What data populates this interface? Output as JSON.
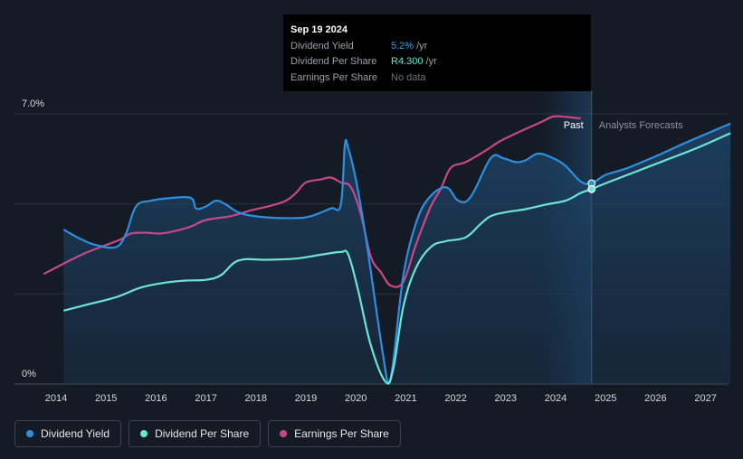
{
  "tooltip": {
    "date": "Sep 19 2024",
    "rows": [
      {
        "label": "Dividend Yield",
        "value": "5.2%",
        "unit": "/yr"
      },
      {
        "label": "Dividend Per Share",
        "value": "R4.300",
        "unit": "/yr"
      },
      {
        "label": "Earnings Per Share",
        "value": "No data",
        "unit": ""
      }
    ]
  },
  "legend": [
    {
      "label": "Dividend Yield",
      "color": "#2e8fe0"
    },
    {
      "label": "Dividend Per Share",
      "color": "#6be6d2"
    },
    {
      "label": "Earnings Per Share",
      "color": "#c7488a"
    }
  ],
  "chart_data": {
    "type": "line",
    "y_axis_labels": [
      "7.0%",
      "0%"
    ],
    "ylim": [
      0,
      7.0
    ],
    "xlim": [
      2013.7,
      2027.5
    ],
    "x_ticks": [
      "2014",
      "2015",
      "2016",
      "2017",
      "2018",
      "2019",
      "2020",
      "2021",
      "2022",
      "2023",
      "2024",
      "2025",
      "2026",
      "2027"
    ],
    "past_label": "Past",
    "forecast_label": "Analysts Forecasts",
    "forecast_start": 2024.72,
    "past_shade_start": 2023.7,
    "grid": true,
    "series": [
      {
        "name": "Dividend Yield",
        "color": "#2e8fe0",
        "fill": true,
        "points": [
          [
            2014.15,
            4.0
          ],
          [
            2014.5,
            3.75
          ],
          [
            2014.8,
            3.6
          ],
          [
            2015.2,
            3.55
          ],
          [
            2015.4,
            3.9
          ],
          [
            2015.6,
            4.6
          ],
          [
            2015.9,
            4.75
          ],
          [
            2016.3,
            4.82
          ],
          [
            2016.7,
            4.82
          ],
          [
            2016.8,
            4.55
          ],
          [
            2017.0,
            4.6
          ],
          [
            2017.2,
            4.75
          ],
          [
            2017.4,
            4.65
          ],
          [
            2017.7,
            4.42
          ],
          [
            2018.2,
            4.32
          ],
          [
            2018.8,
            4.3
          ],
          [
            2019.1,
            4.35
          ],
          [
            2019.5,
            4.55
          ],
          [
            2019.7,
            4.65
          ],
          [
            2019.78,
            6.2
          ],
          [
            2019.85,
            6.1
          ],
          [
            2020.0,
            5.3
          ],
          [
            2020.2,
            3.8
          ],
          [
            2020.4,
            2.0
          ],
          [
            2020.55,
            0.7
          ],
          [
            2020.65,
            0.05
          ],
          [
            2020.75,
            0.6
          ],
          [
            2020.95,
            2.8
          ],
          [
            2021.2,
            4.15
          ],
          [
            2021.45,
            4.8
          ],
          [
            2021.8,
            5.1
          ],
          [
            2022.05,
            4.75
          ],
          [
            2022.3,
            4.85
          ],
          [
            2022.7,
            5.85
          ],
          [
            2022.95,
            5.85
          ],
          [
            2023.2,
            5.75
          ],
          [
            2023.4,
            5.8
          ],
          [
            2023.65,
            5.97
          ],
          [
            2023.95,
            5.85
          ],
          [
            2024.2,
            5.65
          ],
          [
            2024.5,
            5.25
          ],
          [
            2024.72,
            5.2
          ],
          [
            2025.0,
            5.42
          ],
          [
            2025.4,
            5.58
          ],
          [
            2026.0,
            5.9
          ],
          [
            2026.6,
            6.25
          ],
          [
            2027.5,
            6.75
          ]
        ]
      },
      {
        "name": "Dividend Per Share",
        "color": "#6be6d2",
        "fill": false,
        "points": [
          [
            2014.15,
            1.9
          ],
          [
            2014.6,
            2.05
          ],
          [
            2015.2,
            2.25
          ],
          [
            2015.7,
            2.5
          ],
          [
            2016.2,
            2.63
          ],
          [
            2016.6,
            2.68
          ],
          [
            2017.0,
            2.7
          ],
          [
            2017.3,
            2.82
          ],
          [
            2017.65,
            3.2
          ],
          [
            2018.2,
            3.22
          ],
          [
            2018.8,
            3.25
          ],
          [
            2019.3,
            3.35
          ],
          [
            2019.7,
            3.42
          ],
          [
            2019.85,
            3.35
          ],
          [
            2020.05,
            2.4
          ],
          [
            2020.3,
            1.0
          ],
          [
            2020.6,
            0.05
          ],
          [
            2020.75,
            0.4
          ],
          [
            2020.95,
            2.0
          ],
          [
            2021.2,
            3.0
          ],
          [
            2021.5,
            3.55
          ],
          [
            2021.8,
            3.7
          ],
          [
            2022.2,
            3.8
          ],
          [
            2022.5,
            4.15
          ],
          [
            2022.7,
            4.35
          ],
          [
            2023.0,
            4.45
          ],
          [
            2023.4,
            4.53
          ],
          [
            2023.8,
            4.65
          ],
          [
            2024.2,
            4.75
          ],
          [
            2024.5,
            4.95
          ],
          [
            2024.72,
            5.05
          ],
          [
            2025.0,
            5.2
          ],
          [
            2025.6,
            5.5
          ],
          [
            2026.2,
            5.8
          ],
          [
            2026.8,
            6.1
          ],
          [
            2027.5,
            6.5
          ]
        ]
      },
      {
        "name": "Earnings Per Share",
        "color": "#c7488a",
        "fill": false,
        "points": [
          [
            2013.75,
            2.85
          ],
          [
            2014.2,
            3.15
          ],
          [
            2014.6,
            3.4
          ],
          [
            2015.0,
            3.6
          ],
          [
            2015.3,
            3.75
          ],
          [
            2015.5,
            3.9
          ],
          [
            2015.8,
            3.92
          ],
          [
            2016.1,
            3.9
          ],
          [
            2016.4,
            3.97
          ],
          [
            2016.7,
            4.08
          ],
          [
            2017.0,
            4.25
          ],
          [
            2017.5,
            4.35
          ],
          [
            2017.9,
            4.5
          ],
          [
            2018.3,
            4.62
          ],
          [
            2018.6,
            4.75
          ],
          [
            2018.8,
            4.95
          ],
          [
            2019.0,
            5.22
          ],
          [
            2019.3,
            5.3
          ],
          [
            2019.5,
            5.35
          ],
          [
            2019.7,
            5.22
          ],
          [
            2019.9,
            5.1
          ],
          [
            2020.1,
            4.4
          ],
          [
            2020.3,
            3.3
          ],
          [
            2020.5,
            2.9
          ],
          [
            2020.7,
            2.55
          ],
          [
            2020.95,
            2.65
          ],
          [
            2021.2,
            3.6
          ],
          [
            2021.5,
            4.6
          ],
          [
            2021.7,
            5.05
          ],
          [
            2021.9,
            5.6
          ],
          [
            2022.2,
            5.75
          ],
          [
            2022.6,
            6.05
          ],
          [
            2022.9,
            6.3
          ],
          [
            2023.3,
            6.55
          ],
          [
            2023.7,
            6.78
          ],
          [
            2023.95,
            6.93
          ],
          [
            2024.2,
            6.92
          ],
          [
            2024.5,
            6.88
          ]
        ]
      }
    ]
  }
}
